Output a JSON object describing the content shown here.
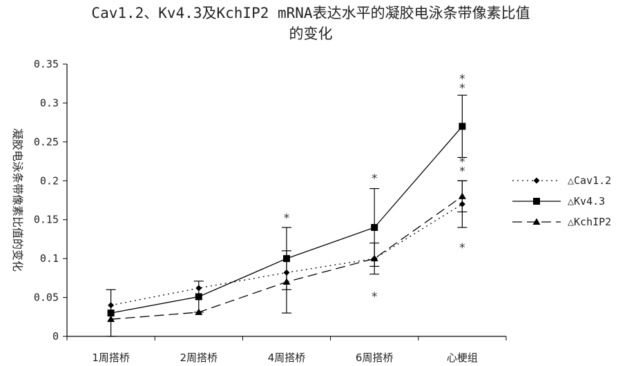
{
  "chart_data": {
    "type": "line",
    "title_line1": "Cav1.2、Kv4.3及KchIP2 mRNA表达水平的凝胶电泳条带像素比值",
    "title_line2": "的变化",
    "ylabel": "凝胶电泳条带像素比值的变化",
    "xlabel": "",
    "categories": [
      "1周搭桥",
      "2周搭桥",
      "4周搭桥",
      "6周搭桥",
      "心梗组"
    ],
    "ylim": [
      0,
      0.35
    ],
    "yticks": [
      0,
      0.05,
      0.1,
      0.15,
      0.2,
      0.25,
      0.3,
      0.35
    ],
    "ytick_labels": [
      "0",
      "0.05",
      "0.1",
      "0.15",
      "0.2",
      "0.25",
      "0.3",
      "0.35"
    ],
    "grid": false,
    "legend_position": "right",
    "series": [
      {
        "name": "△Cav1.2",
        "values": [
          0.04,
          0.062,
          0.082,
          0.1,
          0.17
        ],
        "error": [
          null,
          null,
          null,
          0.02,
          0.03
        ],
        "line_style": "dotted",
        "marker": "diamond",
        "color": "#000000"
      },
      {
        "name": "△Kv4.3",
        "values": [
          0.03,
          0.051,
          0.1,
          0.14,
          0.27
        ],
        "error": [
          0.03,
          0.02,
          0.04,
          0.05,
          0.04
        ],
        "line_style": "solid",
        "marker": "square",
        "color": "#000000"
      },
      {
        "name": "△KchIP2",
        "values": [
          0.022,
          0.031,
          0.07,
          0.1,
          0.18
        ],
        "error": [
          null,
          null,
          0.04,
          null,
          0.02
        ],
        "line_style": "dashed",
        "marker": "triangle",
        "color": "#000000"
      }
    ],
    "annotations": [
      {
        "category_index": 2,
        "text": "*",
        "y": 0.156
      },
      {
        "category_index": 3,
        "text": "*",
        "y": 0.207
      },
      {
        "category_index": 3,
        "text": "*",
        "y": 0.055
      },
      {
        "category_index": 4,
        "text": "*",
        "y": 0.335
      },
      {
        "category_index": 4,
        "text": "*",
        "y": 0.323
      },
      {
        "category_index": 4,
        "text": "*",
        "y": 0.228
      },
      {
        "category_index": 4,
        "text": "*",
        "y": 0.216
      },
      {
        "category_index": 4,
        "text": "*",
        "y": 0.118
      }
    ]
  }
}
